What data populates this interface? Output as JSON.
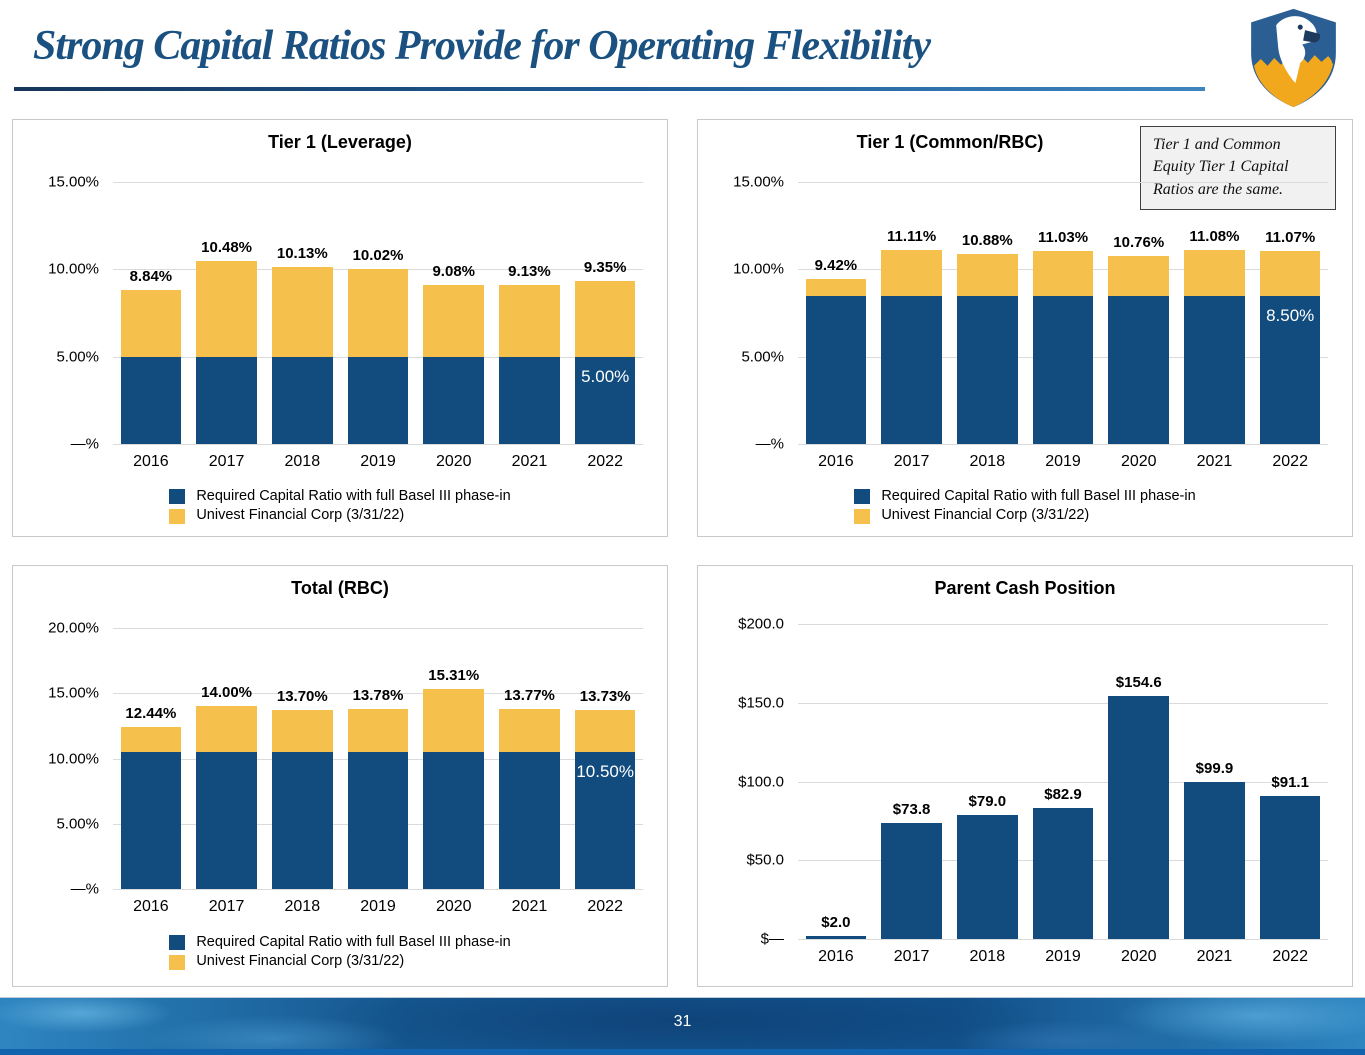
{
  "slide": {
    "title": "Strong Capital Ratios Provide for Operating Flexibility",
    "page_number": "31"
  },
  "colors": {
    "required_blue": "#124C7E",
    "univest_gold": "#F5C04B",
    "title_blue": "#1A5180",
    "gridline_gray": "#DBDBDB",
    "footer_blue": "#12508A",
    "shield_blue": "#2B5F93",
    "shield_gold": "#F2A81D"
  },
  "legend": {
    "required": "Required Capital Ratio with full Basel III phase-in",
    "univest": "Univest Financial Corp (3/31/22)"
  },
  "note": {
    "text": "Tier 1 and Common Equity Tier 1 Capital Ratios are the same."
  },
  "chart_data": [
    {
      "id": "tier1_leverage",
      "type": "bar",
      "stacked": true,
      "title": "Tier 1 (Leverage)",
      "categories": [
        "2016",
        "2017",
        "2018",
        "2019",
        "2020",
        "2021",
        "2022"
      ],
      "series": [
        {
          "name": "Required Capital Ratio with full Basel III phase-in",
          "color_key": "required_blue",
          "values": [
            5.0,
            5.0,
            5.0,
            5.0,
            5.0,
            5.0,
            5.0
          ]
        },
        {
          "name": "Univest Financial Corp (3/31/22)",
          "color_key": "univest_gold",
          "values": [
            3.84,
            5.48,
            5.13,
            5.02,
            4.08,
            4.13,
            4.35
          ]
        }
      ],
      "totals": [
        8.84,
        10.48,
        10.13,
        10.02,
        9.08,
        9.13,
        9.35
      ],
      "total_labels": [
        "8.84%",
        "10.48%",
        "10.13%",
        "10.02%",
        "9.08%",
        "9.13%",
        "9.35%"
      ],
      "in_bar_label": {
        "category_index": 6,
        "text": "5.00%"
      },
      "ylim": [
        0,
        15
      ],
      "yticks": [
        {
          "value": 15,
          "label": "15.00%"
        },
        {
          "value": 10,
          "label": "10.00%"
        },
        {
          "value": 5,
          "label": "5.00%"
        },
        {
          "value": 0,
          "label": "—%"
        }
      ],
      "legend_visible": true,
      "grid": true
    },
    {
      "id": "tier1_common_rbc",
      "type": "bar",
      "stacked": true,
      "title": "Tier 1 (Common/RBC)",
      "categories": [
        "2016",
        "2017",
        "2018",
        "2019",
        "2020",
        "2021",
        "2022"
      ],
      "series": [
        {
          "name": "Required Capital Ratio with full Basel III phase-in",
          "color_key": "required_blue",
          "values": [
            8.5,
            8.5,
            8.5,
            8.5,
            8.5,
            8.5,
            8.5
          ]
        },
        {
          "name": "Univest Financial Corp (3/31/22)",
          "color_key": "univest_gold",
          "values": [
            0.92,
            2.61,
            2.38,
            2.53,
            2.26,
            2.58,
            2.57
          ]
        }
      ],
      "totals": [
        9.42,
        11.11,
        10.88,
        11.03,
        10.76,
        11.08,
        11.07
      ],
      "total_labels": [
        "9.42%",
        "11.11%",
        "10.88%",
        "11.03%",
        "10.76%",
        "11.08%",
        "11.07%"
      ],
      "in_bar_label": {
        "category_index": 6,
        "text": "8.50%"
      },
      "ylim": [
        0,
        15
      ],
      "yticks": [
        {
          "value": 15,
          "label": "15.00%"
        },
        {
          "value": 10,
          "label": "10.00%"
        },
        {
          "value": 5,
          "label": "5.00%"
        },
        {
          "value": 0,
          "label": "—%"
        }
      ],
      "legend_visible": true,
      "grid": true
    },
    {
      "id": "total_rbc",
      "type": "bar",
      "stacked": true,
      "title": "Total (RBC)",
      "categories": [
        "2016",
        "2017",
        "2018",
        "2019",
        "2020",
        "2021",
        "2022"
      ],
      "series": [
        {
          "name": "Required Capital Ratio with full Basel III phase-in",
          "color_key": "required_blue",
          "values": [
            10.5,
            10.5,
            10.5,
            10.5,
            10.5,
            10.5,
            10.5
          ]
        },
        {
          "name": "Univest Financial Corp (3/31/22)",
          "color_key": "univest_gold",
          "values": [
            1.94,
            3.5,
            3.2,
            3.28,
            4.81,
            3.27,
            3.23
          ]
        }
      ],
      "totals": [
        12.44,
        14.0,
        13.7,
        13.78,
        15.31,
        13.77,
        13.73
      ],
      "total_labels": [
        "12.44%",
        "14.00%",
        "13.70%",
        "13.78%",
        "15.31%",
        "13.77%",
        "13.73%"
      ],
      "in_bar_label": {
        "category_index": 6,
        "text": "10.50%"
      },
      "ylim": [
        0,
        20
      ],
      "yticks": [
        {
          "value": 20,
          "label": "20.00%"
        },
        {
          "value": 15,
          "label": "15.00%"
        },
        {
          "value": 10,
          "label": "10.00%"
        },
        {
          "value": 5,
          "label": "5.00%"
        },
        {
          "value": 0,
          "label": "—%"
        }
      ],
      "legend_visible": true,
      "grid": true
    },
    {
      "id": "parent_cash_position",
      "type": "bar",
      "stacked": false,
      "title": "Parent Cash Position",
      "categories": [
        "2016",
        "2017",
        "2018",
        "2019",
        "2020",
        "2021",
        "2022"
      ],
      "series": [
        {
          "color_key": "required_blue",
          "values": [
            2.0,
            73.8,
            79.0,
            82.9,
            154.6,
            99.9,
            91.1
          ]
        }
      ],
      "totals": [
        2.0,
        73.8,
        79.0,
        82.9,
        154.6,
        99.9,
        91.1
      ],
      "total_labels": [
        "$2.0",
        "$73.8",
        "$79.0",
        "$82.9",
        "$154.6",
        "$99.9",
        "$91.1"
      ],
      "in_bar_label": null,
      "ylim": [
        0,
        200
      ],
      "yticks": [
        {
          "value": 200,
          "label": "$200.0"
        },
        {
          "value": 150,
          "label": "$150.0"
        },
        {
          "value": 100,
          "label": "$100.0"
        },
        {
          "value": 50,
          "label": "$50.0"
        },
        {
          "value": 0,
          "label": "$—"
        }
      ],
      "legend_visible": false,
      "grid": true
    }
  ]
}
